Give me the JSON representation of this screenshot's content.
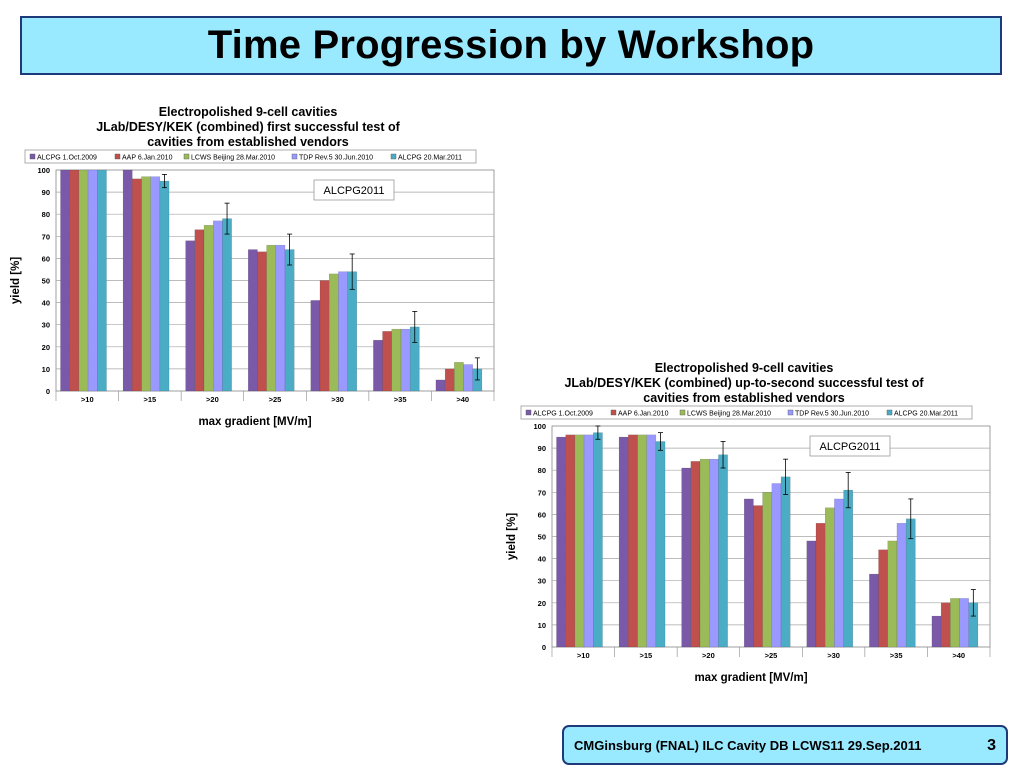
{
  "slide": {
    "title": "Time Progression by Workshop",
    "footer": "CMGinsburg (FNAL) ILC Cavity DB LCWS11 29.Sep.2011",
    "page": "3"
  },
  "colors": {
    "title_bg": "#99e9ff",
    "border": "#1f3a7a"
  },
  "chart_data": [
    {
      "type": "bar",
      "title": [
        "Electropolished 9-cell cavities",
        "JLab/DESY/KEK (combined) first successful test of",
        "cavities from established vendors"
      ],
      "annotation": "ALCPG2011",
      "xlabel": "max gradient [MV/m]",
      "ylabel": "yield [%]",
      "ylim": [
        0,
        100
      ],
      "yticks": [
        0,
        10,
        20,
        30,
        40,
        50,
        60,
        70,
        80,
        90,
        100
      ],
      "grid": true,
      "legend_position": "top",
      "categories": [
        ">10",
        ">15",
        ">20",
        ">25",
        ">30",
        ">35",
        ">40"
      ],
      "series": [
        {
          "name": "ALCPG 1.Oct.2009",
          "color": "#7a5aa8",
          "values": [
            100,
            100,
            68,
            64,
            41,
            23,
            5
          ]
        },
        {
          "name": "AAP 6.Jan.2010",
          "color": "#c0504d",
          "values": [
            100,
            96,
            73,
            63,
            50,
            27,
            10
          ]
        },
        {
          "name": "LCWS Beijing 28.Mar.2010",
          "color": "#9bbb59",
          "values": [
            100,
            97,
            75,
            66,
            53,
            28,
            13
          ]
        },
        {
          "name": "TDP Rev.5 30.Jun.2010",
          "color": "#9999ff",
          "values": [
            100,
            97,
            77,
            66,
            54,
            28,
            12
          ]
        },
        {
          "name": "ALCPG 20.Mar.2011",
          "color": "#4bacc6",
          "values": [
            100,
            95,
            78,
            64,
            54,
            29,
            10
          ],
          "errors": [
            0,
            3,
            7,
            7,
            8,
            7,
            5
          ]
        }
      ]
    },
    {
      "type": "bar",
      "title": [
        "Electropolished 9-cell cavities",
        "JLab/DESY/KEK (combined) up-to-second successful test of",
        "cavities from established vendors"
      ],
      "annotation": "ALCPG2011",
      "xlabel": "max gradient [MV/m]",
      "ylabel": "yield [%]",
      "ylim": [
        0,
        100
      ],
      "yticks": [
        0,
        10,
        20,
        30,
        40,
        50,
        60,
        70,
        80,
        90,
        100
      ],
      "grid": true,
      "legend_position": "top",
      "categories": [
        ">10",
        ">15",
        ">20",
        ">25",
        ">30",
        ">35",
        ">40"
      ],
      "series": [
        {
          "name": "ALCPG 1.Oct.2009",
          "color": "#7a5aa8",
          "values": [
            95,
            95,
            81,
            67,
            48,
            33,
            14
          ]
        },
        {
          "name": "AAP 6.Jan.2010",
          "color": "#c0504d",
          "values": [
            96,
            96,
            84,
            64,
            56,
            44,
            20
          ]
        },
        {
          "name": "LCWS Beijing 28.Mar.2010",
          "color": "#9bbb59",
          "values": [
            96,
            96,
            85,
            70,
            63,
            48,
            22
          ]
        },
        {
          "name": "TDP Rev.5 30.Jun.2010",
          "color": "#9999ff",
          "values": [
            96,
            96,
            85,
            74,
            67,
            56,
            22
          ]
        },
        {
          "name": "ALCPG 20.Mar.2011",
          "color": "#4bacc6",
          "values": [
            97,
            93,
            87,
            77,
            71,
            58,
            20
          ],
          "errors": [
            3,
            4,
            6,
            8,
            8,
            9,
            6
          ]
        }
      ]
    }
  ]
}
